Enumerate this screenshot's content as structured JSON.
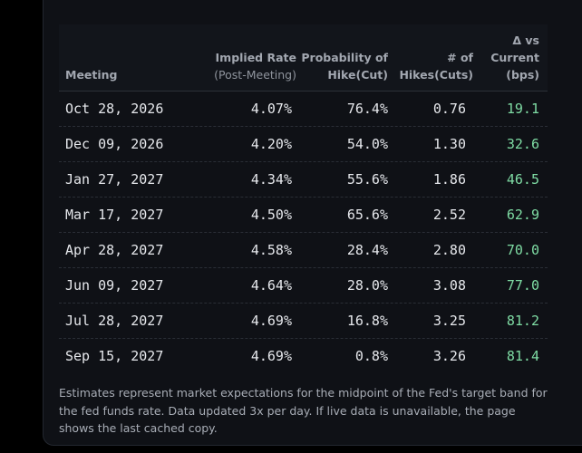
{
  "table": {
    "headers": {
      "meeting": "Meeting",
      "rate": "Implied Rate",
      "rate_sub": "(Post-Meeting)",
      "prob_line1": "Probability of",
      "prob_line2": "Hike(Cut)",
      "hikes_line1": "# of",
      "hikes_line2": "Hikes(Cuts)",
      "delta_line1": "Δ vs",
      "delta_line2": "Current",
      "delta_line3": "(bps)"
    },
    "rows": [
      {
        "meeting": "Oct 28, 2026",
        "rate": "4.07%",
        "prob": "76.4%",
        "hikes": "0.76",
        "delta": "19.1"
      },
      {
        "meeting": "Dec 09, 2026",
        "rate": "4.20%",
        "prob": "54.0%",
        "hikes": "1.30",
        "delta": "32.6"
      },
      {
        "meeting": "Jan 27, 2027",
        "rate": "4.34%",
        "prob": "55.6%",
        "hikes": "1.86",
        "delta": "46.5"
      },
      {
        "meeting": "Mar 17, 2027",
        "rate": "4.50%",
        "prob": "65.6%",
        "hikes": "2.52",
        "delta": "62.9"
      },
      {
        "meeting": "Apr 28, 2027",
        "rate": "4.58%",
        "prob": "28.4%",
        "hikes": "2.80",
        "delta": "70.0"
      },
      {
        "meeting": "Jun 09, 2027",
        "rate": "4.64%",
        "prob": "28.0%",
        "hikes": "3.08",
        "delta": "77.0"
      },
      {
        "meeting": "Jul 28, 2027",
        "rate": "4.69%",
        "prob": "16.8%",
        "hikes": "3.25",
        "delta": "81.2"
      },
      {
        "meeting": "Sep 15, 2027",
        "rate": "4.69%",
        "prob": "0.8%",
        "hikes": "3.26",
        "delta": "81.4"
      }
    ]
  },
  "footnote": "Estimates represent market expectations for the midpoint of the Fed's target band for the fed funds rate. Data updated 3x per day. If live data is unavailable, the page shows the last cached copy.",
  "colors": {
    "background": "#000000",
    "card": "#0f1116",
    "delta_positive": "#7fdca4",
    "text": "#e6e8ec"
  }
}
